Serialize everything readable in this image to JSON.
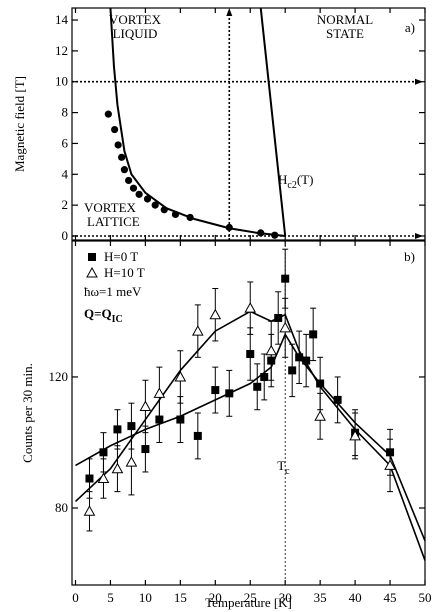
{
  "chart_data": [
    {
      "type": "phase",
      "label": "a)",
      "y_label": "Magnetic field [T]",
      "xlim": [
        -0.5,
        50
      ],
      "ylim": [
        -0.26,
        14.78
      ],
      "xticks": [
        0,
        5,
        10,
        15,
        20,
        25,
        30,
        35,
        40,
        45,
        50
      ],
      "yticks": [
        0,
        2,
        4,
        6,
        8,
        10,
        12,
        14
      ],
      "series": [
        {
          "marker": "circle",
          "color": "#000000",
          "x": [
            4.7,
            5.6,
            6.1,
            6.6,
            7.0,
            7.6,
            8.3,
            9.1,
            10.3,
            11.4,
            12.7,
            14.3,
            16.4,
            22.0,
            26.5,
            28.5
          ],
          "values": [
            7.9,
            6.9,
            5.9,
            5.1,
            4.3,
            3.6,
            3.1,
            2.7,
            2.4,
            2.0,
            1.7,
            1.4,
            1.2,
            0.55,
            0.2,
            0.05
          ]
        }
      ],
      "curves": [
        {
          "x": [
            5,
            5.5,
            6,
            7,
            8,
            10,
            13,
            17,
            22,
            26,
            30
          ],
          "values": [
            14.78,
            11,
            8.5,
            5.5,
            4,
            2.8,
            1.8,
            1.1,
            0.5,
            0.2,
            0
          ]
        },
        {
          "x": [
            26.5,
            30
          ],
          "values": [
            14.78,
            0
          ]
        }
      ],
      "guides": {
        "h": [
          10,
          0
        ],
        "v": [
          22
        ]
      },
      "regions": [
        [
          "VORTEX",
          "LIQUID"
        ],
        [
          "NORMAL",
          "STATE"
        ],
        [
          "VORTEX",
          "LATTICE"
        ]
      ],
      "curve_label": {
        "base": "H",
        "sub": "c2",
        "tail": "(T)"
      }
    },
    {
      "type": "scatter-errors",
      "label": "b)",
      "x_label": "Temperature [K]",
      "y_label": "Counts per 30 min.",
      "xlim": [
        -0.5,
        50
      ],
      "ylim": [
        56.5,
        161.5
      ],
      "xticks": [
        0,
        5,
        10,
        15,
        20,
        25,
        30,
        35,
        40,
        45,
        50
      ],
      "yticks": [
        80,
        120
      ],
      "series": [
        {
          "name": "H=0 T",
          "marker": "square",
          "color": "#000000",
          "x": [
            2,
            4,
            6,
            8,
            10,
            12,
            15,
            17.5,
            20,
            22,
            25,
            26,
            27,
            28,
            29,
            30,
            31,
            32,
            33,
            34,
            35,
            37.5,
            40,
            45
          ],
          "values": [
            89,
            97,
            104,
            105,
            98,
            107,
            107,
            102,
            116,
            115,
            127,
            117,
            120,
            125,
            138,
            150,
            122,
            126,
            125,
            133,
            118,
            113,
            103,
            97
          ],
          "errors": [
            6,
            6,
            6,
            7,
            7,
            7,
            7,
            7,
            7,
            7,
            8,
            7,
            7,
            8,
            8,
            9,
            8,
            8,
            8,
            8,
            8,
            7,
            7,
            7
          ]
        },
        {
          "name": "H=10 T",
          "marker": "triangle",
          "color": "#000000",
          "x": [
            2,
            4,
            6,
            8,
            10,
            12,
            15,
            17.5,
            20,
            25,
            28,
            30,
            35,
            40,
            45
          ],
          "values": [
            79,
            89,
            92,
            94,
            111,
            115,
            120,
            134,
            139,
            141,
            128,
            135,
            108,
            102,
            93
          ],
          "errors": [
            6,
            6,
            7,
            10,
            8,
            8,
            8,
            8,
            8,
            8,
            9,
            9,
            7,
            7,
            8
          ]
        }
      ],
      "fits": [
        {
          "x": [
            0,
            5,
            10,
            15,
            20,
            25,
            28,
            30,
            32,
            35,
            40,
            45,
            50
          ],
          "values": [
            93,
            99,
            104,
            108,
            113,
            118,
            123,
            133,
            126,
            118,
            106,
            96,
            70
          ]
        },
        {
          "x": [
            0,
            5,
            10,
            15,
            20,
            25,
            28,
            30,
            32,
            35,
            40,
            45,
            50
          ],
          "values": [
            82,
            92,
            107,
            122,
            134,
            140,
            137,
            139,
            128,
            117,
            104,
            93,
            64
          ]
        }
      ],
      "note": "ħω=1 meV",
      "q_label": {
        "base": "Q=Q",
        "sub": "IC"
      },
      "tc": {
        "x": 30,
        "base": "T",
        "sub": "c"
      }
    }
  ]
}
